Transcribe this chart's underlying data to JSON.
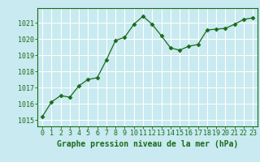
{
  "x": [
    0,
    1,
    2,
    3,
    4,
    5,
    6,
    7,
    8,
    9,
    10,
    11,
    12,
    13,
    14,
    15,
    16,
    17,
    18,
    19,
    20,
    21,
    22,
    23
  ],
  "y": [
    1015.2,
    1016.1,
    1016.5,
    1016.4,
    1017.1,
    1017.5,
    1017.6,
    1018.7,
    1019.9,
    1020.1,
    1020.9,
    1021.4,
    1020.9,
    1020.2,
    1019.45,
    1019.3,
    1019.55,
    1019.65,
    1020.55,
    1020.6,
    1020.65,
    1020.9,
    1021.2,
    1021.3
  ],
  "line_color": "#1a6b1a",
  "marker": "D",
  "marker_size": 2.5,
  "bg_color": "#c8eaf0",
  "grid_color": "#ffffff",
  "ylabel_ticks": [
    1015,
    1016,
    1017,
    1018,
    1019,
    1020,
    1021
  ],
  "xticks": [
    0,
    1,
    2,
    3,
    4,
    5,
    6,
    7,
    8,
    9,
    10,
    11,
    12,
    13,
    14,
    15,
    16,
    17,
    18,
    19,
    20,
    21,
    22,
    23
  ],
  "xlabel": "Graphe pression niveau de la mer (hPa)",
  "ylim": [
    1014.6,
    1021.9
  ],
  "xlim": [
    -0.5,
    23.5
  ],
  "xlabel_fontsize": 7.0,
  "tick_fontsize": 6.0,
  "outer_bg": "#c8eaf0"
}
